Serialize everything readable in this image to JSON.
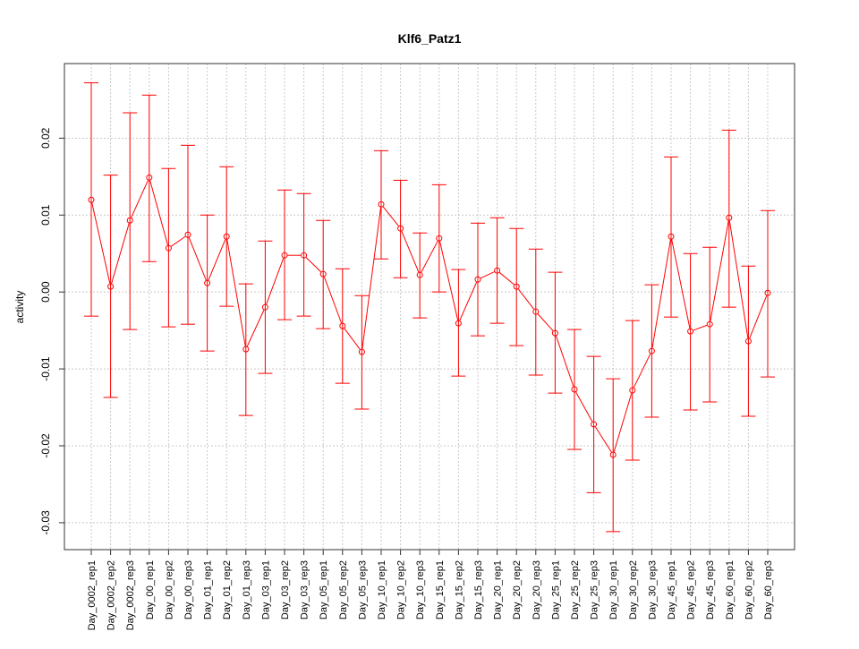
{
  "chart_data": {
    "type": "line",
    "title": "Klf6_Patz1",
    "xlabel": "",
    "ylabel": "activity",
    "ylim": [
      -0.0335,
      0.0297
    ],
    "yticks": [
      -0.03,
      -0.02,
      -0.01,
      0.0,
      0.01,
      0.02
    ],
    "ytick_labels": [
      "-0.03",
      "-0.02",
      "-0.01",
      "0.00",
      "0.01",
      "0.02"
    ],
    "grid": true,
    "color": "#ff0000",
    "categories": [
      "Day_0002_rep1",
      "Day_0002_rep2",
      "Day_0002_rep3",
      "Day_00_rep1",
      "Day_00_rep2",
      "Day_00_rep3",
      "Day_01_rep1",
      "Day_01_rep2",
      "Day_01_rep3",
      "Day_03_rep1",
      "Day_03_rep2",
      "Day_03_rep3",
      "Day_05_rep1",
      "Day_05_rep2",
      "Day_05_rep3",
      "Day_10_rep1",
      "Day_10_rep2",
      "Day_10_rep3",
      "Day_15_rep1",
      "Day_15_rep2",
      "Day_15_rep3",
      "Day_20_rep1",
      "Day_20_rep2",
      "Day_20_rep3",
      "Day_25_rep1",
      "Day_25_rep2",
      "Day_25_rep3",
      "Day_30_rep1",
      "Day_30_rep2",
      "Day_30_rep3",
      "Day_45_rep1",
      "Day_45_rep2",
      "Day_45_rep3",
      "Day_60_rep1",
      "Day_60_rep2",
      "Day_60_rep3"
    ],
    "tick_labels": [
      "Day_0002_rep1",
      "Day_0002_rep2",
      "Day_0002_rep3",
      "Day_00_rep1",
      "Day_00_rep2",
      "Day_00_rep3",
      "Day_01_rep1",
      "Day_01_rep2",
      "Day_01_rep3",
      "Day_03_rep1",
      "Day_03_rep2",
      "Day_03_rep3",
      "Day_05_rep1",
      "Day_05_rep2",
      "Day_05_rep3",
      "Day_10_rep1",
      "Day_10_rep2",
      "Day_10_rep3",
      "Day_15_rep1",
      "Day_15_rep2",
      "Day_15_rep3",
      "Day_20_rep1",
      "Day_20_rep2",
      "Day_20_rep3",
      "Day_25_rep1",
      "Day_25_rep2",
      "Day_25_rep3",
      "Day_30_rep1",
      "Day_30_rep2",
      "Day_30_rep3",
      "Day_45_rep1",
      "Day_45_rep2",
      "Day_45_rep3",
      "Day_60_rep1",
      "Day_60_rep2",
      "Day_60_rep3"
    ],
    "values": [
      0.01198,
      0.0007,
      0.0093,
      0.01488,
      0.0057,
      0.00744,
      0.00116,
      0.00721,
      -0.00744,
      -0.00198,
      0.00477,
      0.00477,
      0.00233,
      -0.00442,
      -0.00779,
      0.0114,
      0.00826,
      0.00221,
      0.00698,
      -0.00407,
      0.00163,
      0.00279,
      0.0007,
      -0.00256,
      -0.00535,
      -0.01267,
      -0.01721,
      -0.02116,
      -0.01279,
      -0.00767,
      0.00721,
      -0.00512,
      -0.00419,
      0.00965,
      -0.0064,
      -0.00012
    ],
    "upper": [
      0.0272,
      0.0152,
      0.0233,
      0.0256,
      0.01605,
      0.01907,
      0.01,
      0.01628,
      0.00105,
      0.00663,
      0.01326,
      0.01279,
      0.0093,
      0.00302,
      -0.00047,
      0.01837,
      0.01453,
      0.00767,
      0.01395,
      0.00291,
      0.00895,
      0.00965,
      0.00826,
      0.00558,
      0.00256,
      -0.00488,
      -0.00837,
      -0.01128,
      -0.00372,
      0.00093,
      0.01756,
      0.005,
      0.00581,
      0.02105,
      0.00337,
      0.01058
    ],
    "lower": [
      -0.00314,
      -0.01372,
      -0.00488,
      0.00395,
      -0.00453,
      -0.00419,
      -0.00767,
      -0.00186,
      -0.01605,
      -0.01058,
      -0.0036,
      -0.00314,
      -0.00477,
      -0.01186,
      -0.01523,
      0.0043,
      0.00186,
      -0.00337,
      0.0,
      -0.01093,
      -0.0057,
      -0.00407,
      -0.00698,
      -0.01081,
      -0.01314,
      -0.02047,
      -0.02609,
      -0.03116,
      -0.02186,
      -0.01628,
      -0.00326,
      -0.01535,
      -0.0143,
      -0.00198,
      -0.01616,
      -0.01105
    ]
  }
}
